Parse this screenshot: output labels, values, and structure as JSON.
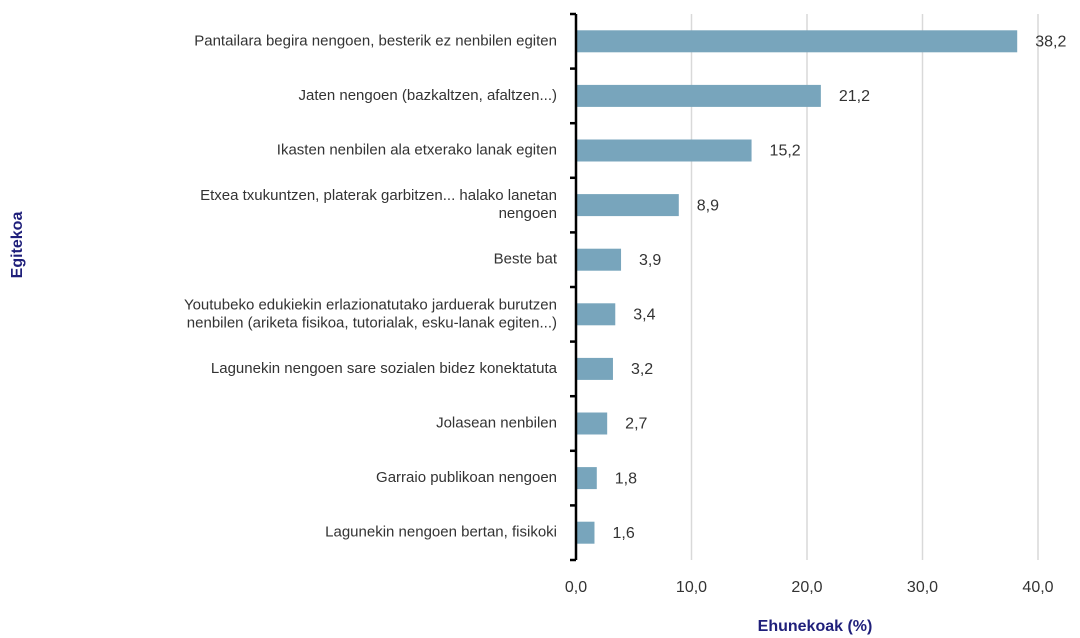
{
  "chart_data": {
    "type": "bar",
    "orientation": "horizontal",
    "x_label": "Ehunekoak (%)",
    "y_label": "Egitekoa",
    "categories": [
      "Pantailara begira nengoen, besterik ez nenbilen egiten",
      "Jaten nengoen (bazkaltzen, afaltzen...)",
      "Ikasten nenbilen ala etxerako lanak egiten",
      "Etxea txukuntzen, platerak garbitzen... halako lanetan\nnengoen",
      "Beste bat",
      "Youtubeko edukiekin erlazionatutako jarduerak burutzen\nnenbilen (ariketa fisikoa, tutorialak, esku-lanak egiten...)",
      "Lagunekin nengoen sare sozialen bidez konektatuta",
      "Jolasean nenbilen",
      "Garraio publikoan nengoen",
      "Lagunekin nengoen bertan, fisikoki"
    ],
    "values": [
      38.2,
      21.2,
      15.2,
      8.9,
      3.9,
      3.4,
      3.2,
      2.7,
      1.8,
      1.6
    ],
    "value_labels": [
      "38,2",
      "21,2",
      "15,2",
      "8,9",
      "3,9",
      "3,4",
      "3,2",
      "2,7",
      "1,8",
      "1,6"
    ],
    "color": "#78a5bc",
    "xlim": [
      0,
      40
    ],
    "xticks": [
      {
        "value": 0,
        "label": "0,0"
      },
      {
        "value": 10,
        "label": "10,0"
      },
      {
        "value": 20,
        "label": "20,0"
      },
      {
        "value": 30,
        "label": "30,0"
      },
      {
        "value": 40,
        "label": "40,0"
      }
    ],
    "grid": true
  }
}
